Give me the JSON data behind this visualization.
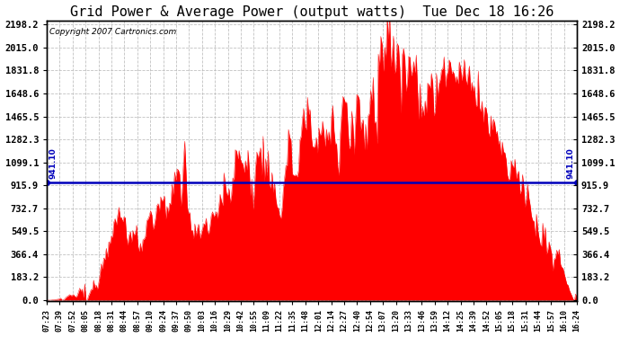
{
  "title": "Grid Power & Average Power (output watts)  Tue Dec 18 16:26",
  "copyright": "Copyright 2007 Cartronics.com",
  "average_value": 941.1,
  "y_max": 2198.2,
  "y_min": 0.0,
  "y_ticks": [
    0.0,
    183.2,
    366.4,
    549.5,
    732.7,
    915.9,
    1099.1,
    1282.3,
    1465.5,
    1648.6,
    1831.8,
    2015.0,
    2198.2
  ],
  "fill_color": "#ff0000",
  "line_color": "#ff0000",
  "avg_line_color": "#0000bb",
  "background_color": "#ffffff",
  "plot_bg_color": "#ffffff",
  "grid_color": "#bbbbbb",
  "title_fontsize": 11,
  "x_labels": [
    "07:23",
    "07:39",
    "07:52",
    "08:05",
    "08:18",
    "08:31",
    "08:44",
    "08:57",
    "09:10",
    "09:24",
    "09:37",
    "09:50",
    "10:03",
    "10:16",
    "10:29",
    "10:42",
    "10:55",
    "11:09",
    "11:22",
    "11:35",
    "11:48",
    "12:01",
    "12:14",
    "12:27",
    "12:40",
    "12:54",
    "13:07",
    "13:20",
    "13:33",
    "13:46",
    "13:59",
    "14:12",
    "14:25",
    "14:39",
    "14:52",
    "15:05",
    "15:18",
    "15:31",
    "15:44",
    "15:57",
    "16:10",
    "16:24"
  ],
  "num_points": 420
}
